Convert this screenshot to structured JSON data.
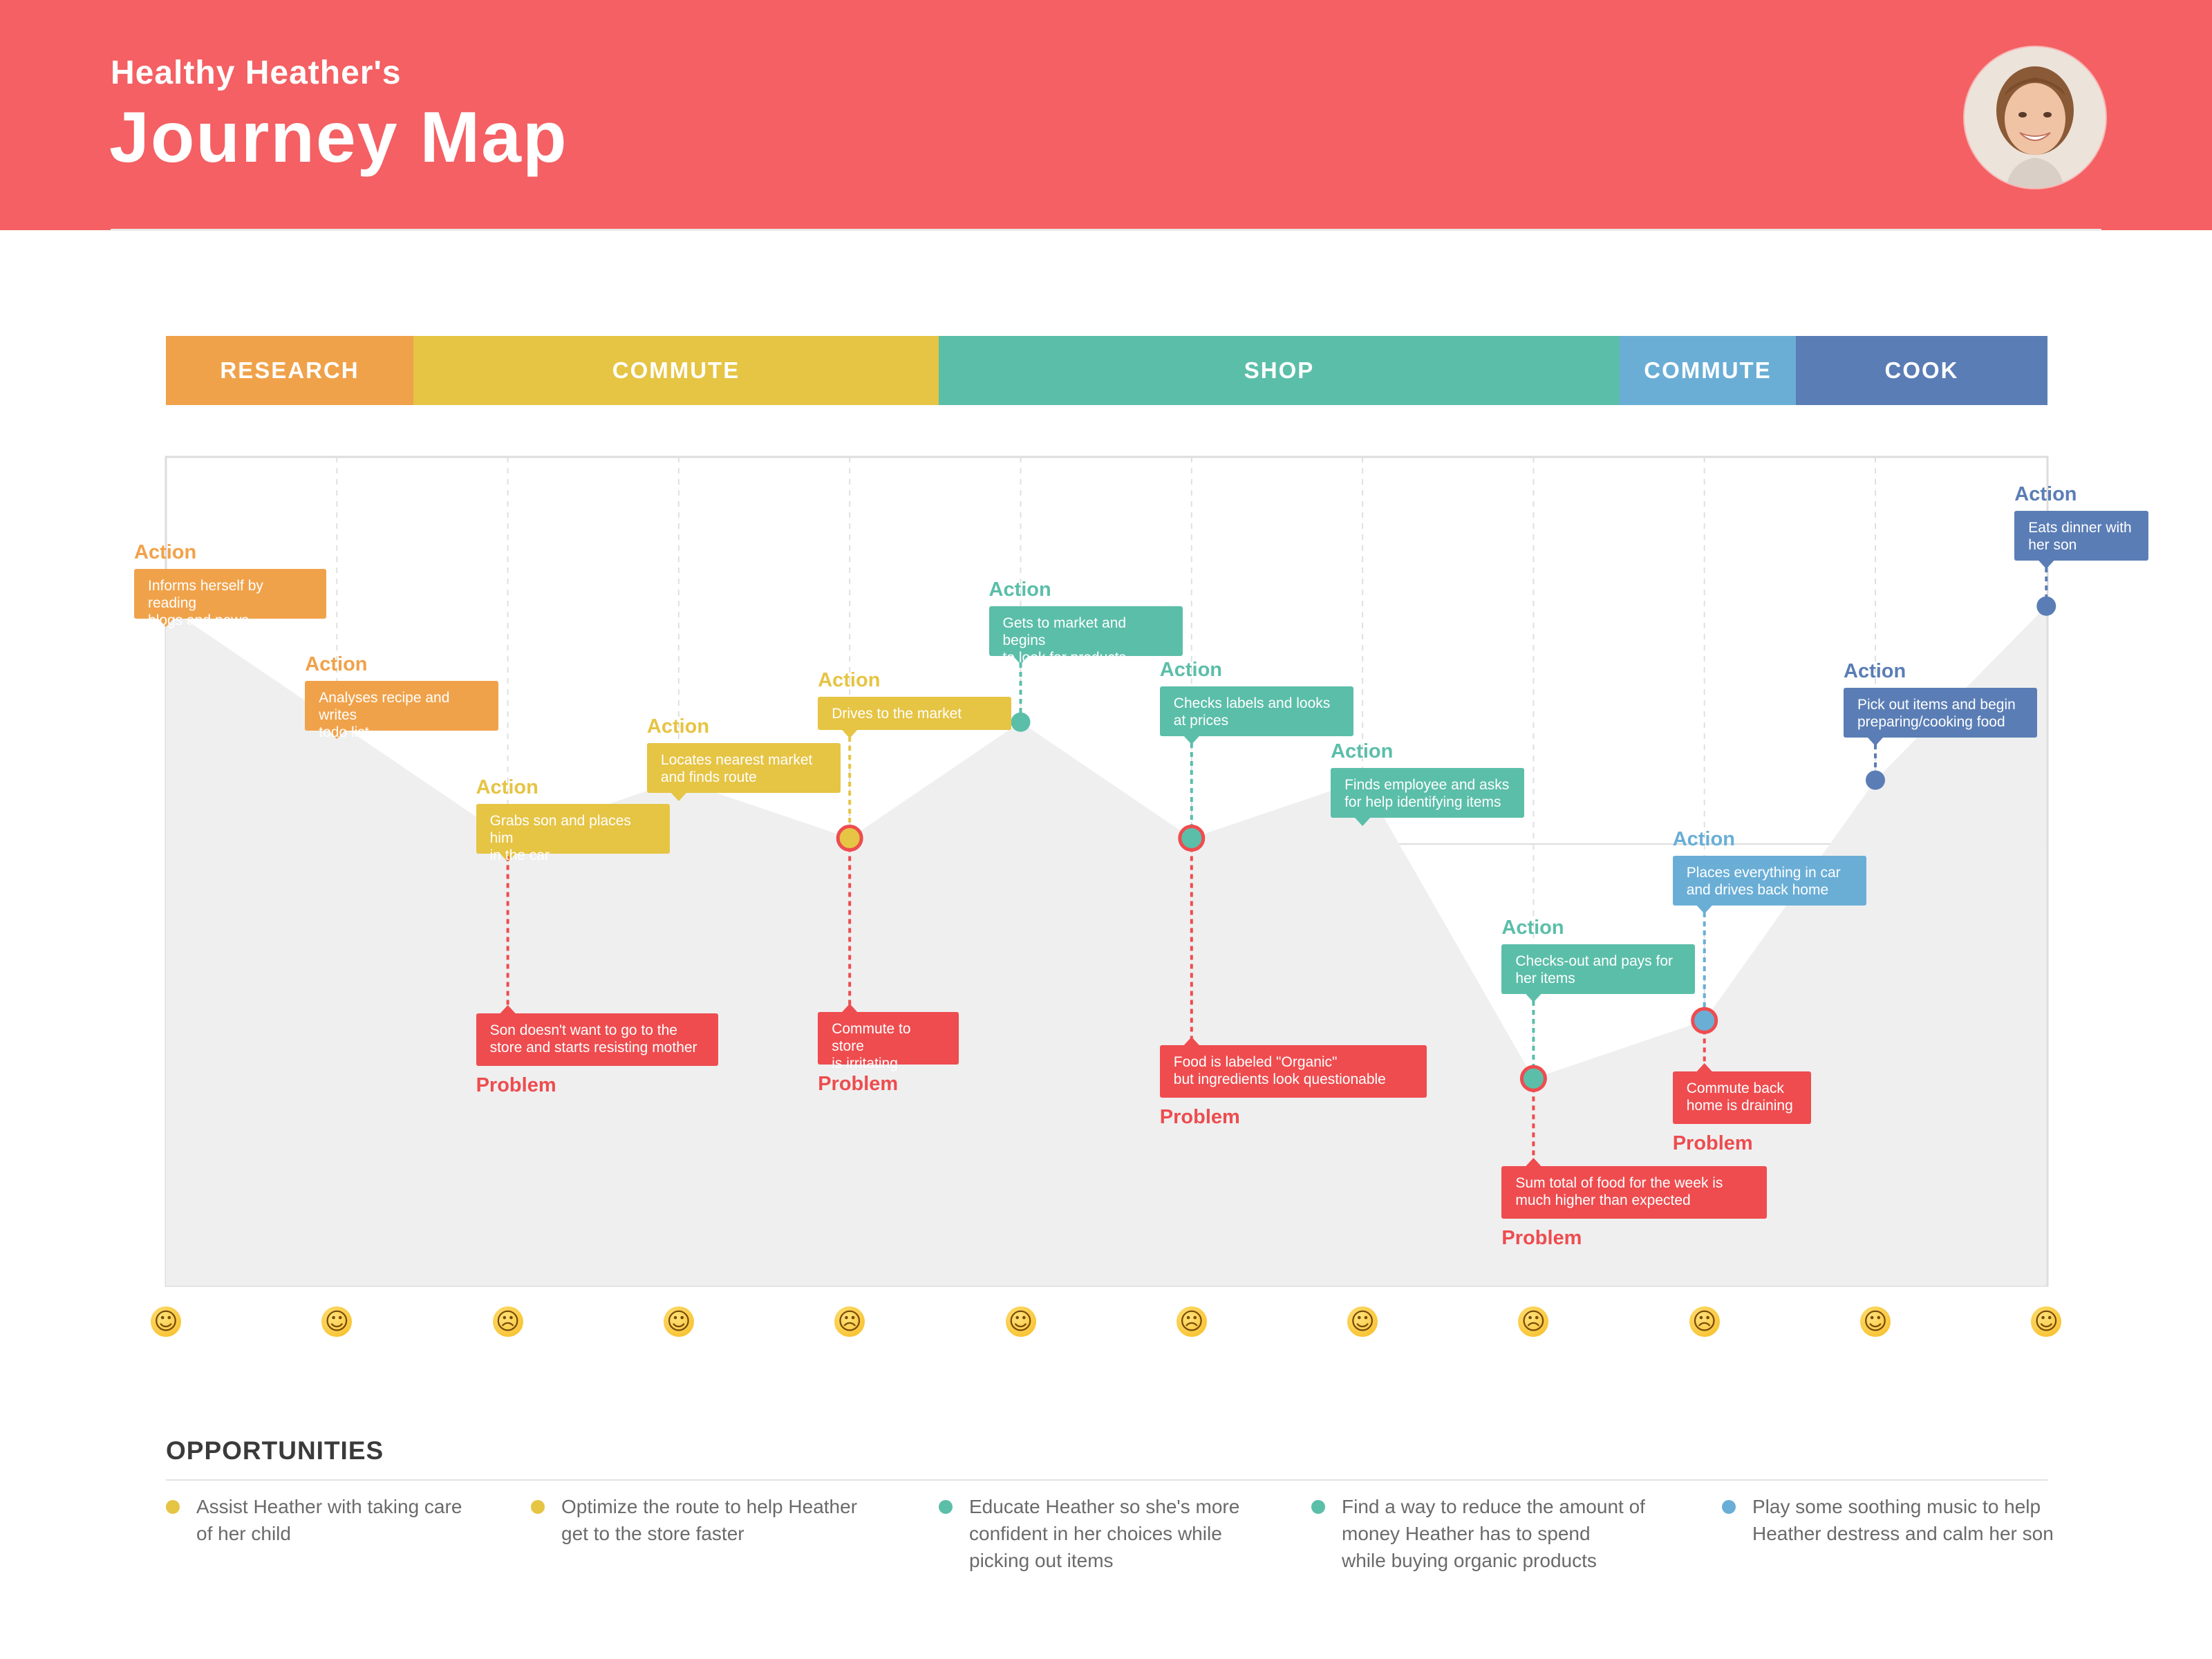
{
  "header": {
    "subtitle": "Healthy Heather's",
    "title": "Journey Map"
  },
  "colors": {
    "header": "#f46063",
    "research": "#f0a24a",
    "commute1": "#e6c444",
    "shop": "#5bbea9",
    "commute2": "#6aaed6",
    "cook": "#5a7db5",
    "problem": "#ee4c4f",
    "area_fill": "#efefef"
  },
  "phases": [
    {
      "label": "RESEARCH",
      "color": "#f0a24a"
    },
    {
      "label": "COMMUTE",
      "color": "#e6c444"
    },
    {
      "label": "SHOP",
      "color": "#5bbea9"
    },
    {
      "label": "COMMUTE",
      "color": "#6aaed6"
    },
    {
      "label": "COOK",
      "color": "#5a7db5"
    }
  ],
  "steps": [
    {
      "level": 0.82,
      "color": "#f0a24a",
      "action": "Informs herself by reading\nblogs and news",
      "problem": null,
      "emoji": "nerd-face-icon",
      "emoji_glyph": "☺"
    },
    {
      "level": 0.68,
      "color": "#f0a24a",
      "action": "Analyses recipe and writes\ntodo list",
      "problem": null,
      "emoji": "thinking-face-icon",
      "emoji_glyph": "☺"
    },
    {
      "level": 0.54,
      "color": "#e6c444",
      "action": "Grabs son and places him\nin the car",
      "problem": "Son doesn't want to go to the\nstore and starts resisting mother",
      "emoji": "angry-face-icon",
      "emoji_glyph": "☹"
    },
    {
      "level": 0.61,
      "color": "#e6c444",
      "action": "Locates nearest market\nand finds route",
      "problem": null,
      "emoji": "face-with-monocle-icon",
      "emoji_glyph": "☺"
    },
    {
      "level": 0.54,
      "color": "#e6c444",
      "action": "Drives to the market",
      "problem": "Commute to store\nis irritating",
      "emoji": "pouting-face-icon",
      "emoji_glyph": "☹"
    },
    {
      "level": 0.68,
      "color": "#5bbea9",
      "action": "Gets to market and begins\nto look for products",
      "problem": null,
      "emoji": "thinking-face-icon",
      "emoji_glyph": "☺"
    },
    {
      "level": 0.54,
      "color": "#5bbea9",
      "action": "Checks labels and looks\nat prices",
      "problem": "Food is labeled \"Organic\"\nbut ingredients look questionable",
      "emoji": "confused-face-icon",
      "emoji_glyph": "☹"
    },
    {
      "level": 0.61,
      "color": "#5bbea9",
      "action": "Finds employee and asks\nfor help identifying items",
      "problem": null,
      "emoji": "neutral-face-icon",
      "emoji_glyph": "☺"
    },
    {
      "level": 0.25,
      "color": "#5bbea9",
      "action": "Checks-out and pays for\nher items",
      "problem": "Sum total of food for the week is\nmuch higher than expected",
      "emoji": "pleading-face-icon",
      "emoji_glyph": "☹"
    },
    {
      "level": 0.32,
      "color": "#6aaed6",
      "action": "Places everything in car\nand drives back home",
      "problem": "Commute back\nhome is draining",
      "emoji": "weary-face-icon",
      "emoji_glyph": "☹"
    },
    {
      "level": 0.61,
      "color": "#5a7db5",
      "action": "Pick out items and begin\npreparing/cooking food",
      "problem": null,
      "emoji": "slightly-smiling-face-icon",
      "emoji_glyph": "☺"
    },
    {
      "level": 0.82,
      "color": "#5a7db5",
      "action": "Eats dinner with\nher son",
      "problem": null,
      "emoji": "hugging-face-icon",
      "emoji_glyph": "☺"
    }
  ],
  "labels": {
    "action": "Action",
    "problem": "Problem"
  },
  "opportunities": {
    "title": "OPPORTUNITIES",
    "items": [
      {
        "text": "Assist Heather with taking care\nof her child",
        "color": "#e6c444"
      },
      {
        "text": "Optimize the route to help Heather\nget to the store faster",
        "color": "#e6c444"
      },
      {
        "text": "Educate Heather so she's more\nconfident in her choices while\npicking out items",
        "color": "#5bbea9"
      },
      {
        "text": "Find a way to reduce the amount of\nmoney Heather has to spend\nwhile buying organic products",
        "color": "#5bbea9"
      },
      {
        "text": "Play some soothing music to help\nHeather destress and calm her son",
        "color": "#6aaed6"
      }
    ]
  }
}
